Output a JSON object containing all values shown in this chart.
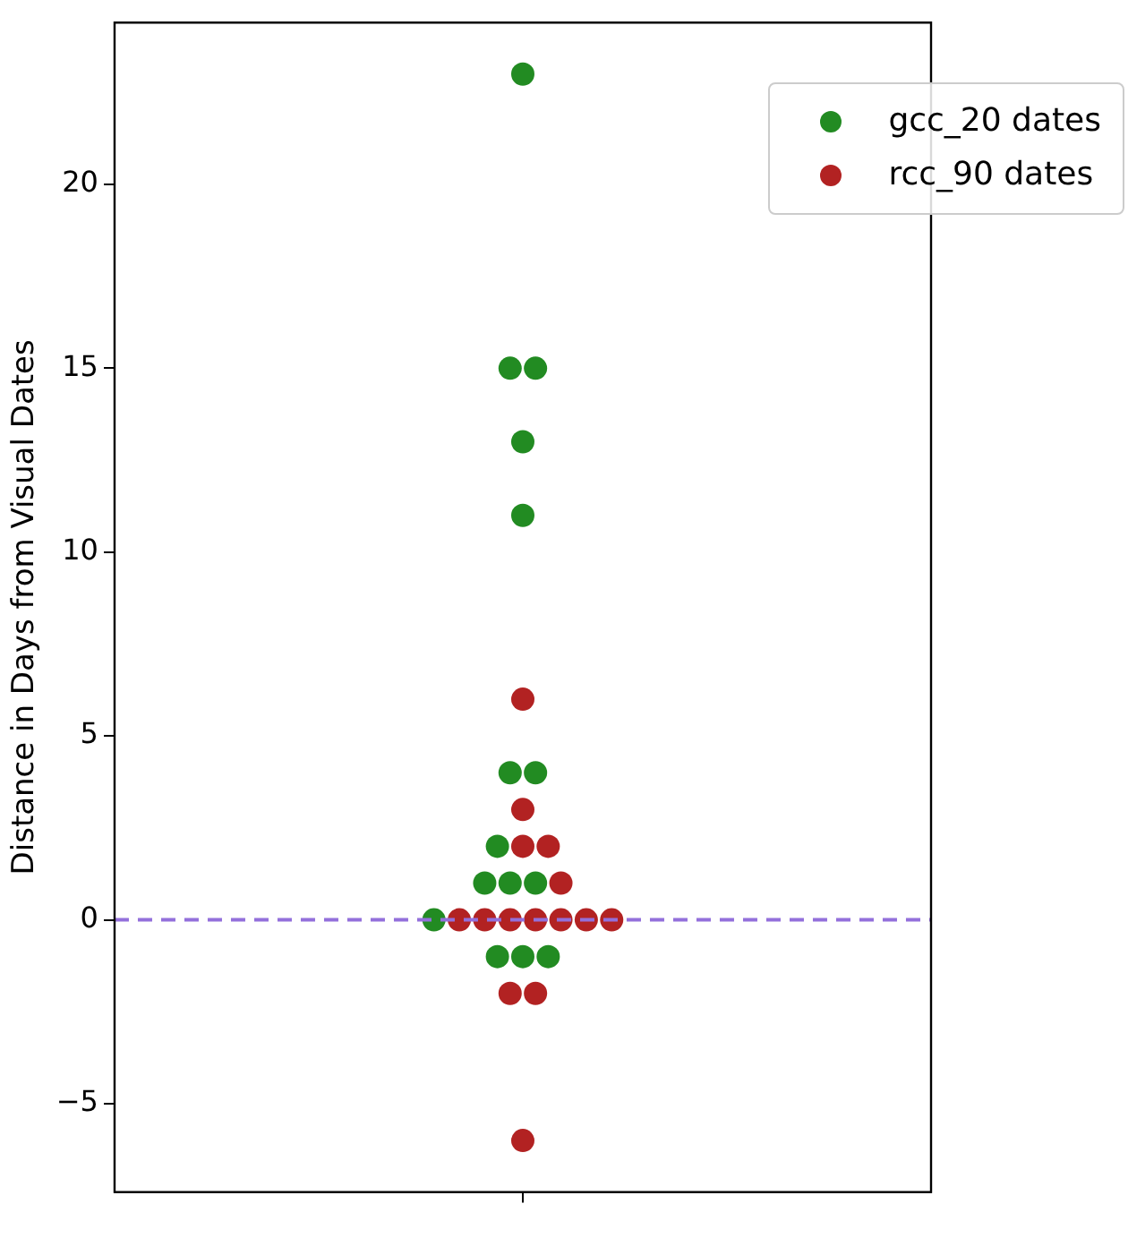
{
  "chart_data": {
    "type": "scatter",
    "ylabel": "Distance in Days from Visual Dates",
    "categories": [
      null
    ],
    "series": [
      {
        "name": "gcc_20 dates",
        "color": "#228b22",
        "x": [
          null,
          null,
          null,
          null,
          null,
          null,
          null,
          null,
          null,
          null,
          null,
          null,
          null,
          null,
          null
        ],
        "values": [
          23,
          15,
          15,
          13,
          11,
          4,
          4,
          2,
          1,
          1,
          1,
          0,
          -1,
          -1,
          -1
        ]
      },
      {
        "name": "rcc_90 dates",
        "color": "#b22222",
        "x": [
          null,
          null,
          null,
          null,
          null,
          null,
          null,
          null,
          null,
          null,
          null,
          null,
          null,
          null,
          null
        ],
        "values": [
          6,
          3,
          2,
          2,
          1,
          0,
          0,
          0,
          0,
          0,
          0,
          0,
          -2,
          -2,
          -6
        ]
      }
    ],
    "ylim": [
      -7.4,
      24.4
    ],
    "yticks": [
      -5,
      0,
      5,
      10,
      15,
      20
    ],
    "grid": false,
    "legend": "top right",
    "marker": "circle",
    "ref_lines": [
      {
        "axis": "y",
        "value": 0,
        "color": "#9370db",
        "line_style": "dashed"
      }
    ]
  }
}
